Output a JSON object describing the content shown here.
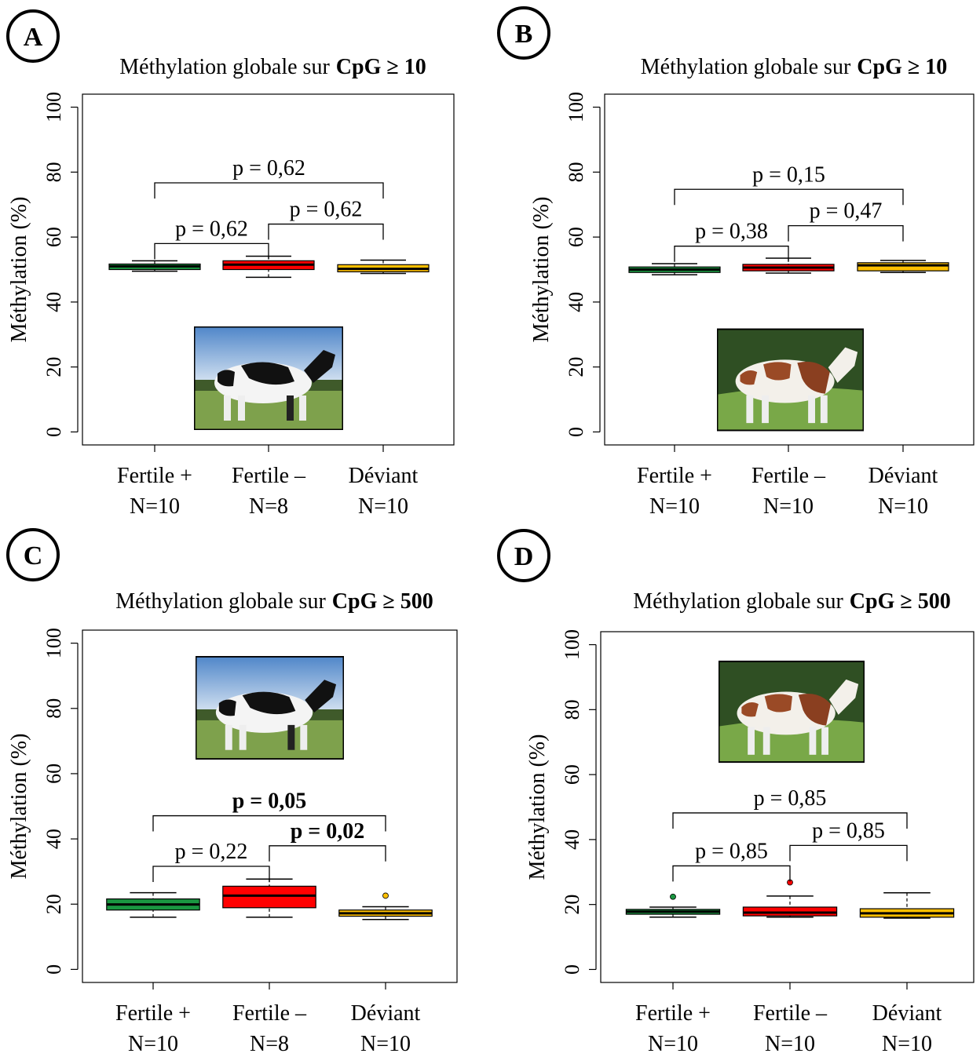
{
  "chart_data": [
    {
      "type": "box",
      "panel": "A",
      "title": "Méthylation globale sur",
      "title_bold": "CpG ≥ 10",
      "ylabel": "Méthylation (%)",
      "ylim": [
        -4,
        104
      ],
      "yticks": [
        0,
        20,
        40,
        60,
        80,
        100
      ],
      "categories": [
        "Fertile +",
        "Fertile –",
        "Déviant"
      ],
      "counts": [
        "N=10",
        "N=8",
        "N=10"
      ],
      "boxes": [
        {
          "color": "#1a9641",
          "whislo": 49.5,
          "q1": 50.0,
          "med": 51.0,
          "q3": 51.7,
          "whishi": 52.7,
          "outliers": []
        },
        {
          "color": "#ff0000",
          "whislo": 47.6,
          "q1": 50.0,
          "med": 51.5,
          "q3": 52.7,
          "whishi": 54.1,
          "outliers": []
        },
        {
          "color": "#ffc000",
          "whislo": 48.8,
          "q1": 49.3,
          "med": 50.2,
          "q3": 51.5,
          "whishi": 52.9,
          "outliers": []
        }
      ],
      "brackets": [
        {
          "from": 0,
          "to": 2,
          "y": 76.7,
          "label": "p = 0,62",
          "bold": false
        },
        {
          "from": 0,
          "to": 1,
          "y": 58.0,
          "label": "p = 0,62",
          "bold": false
        },
        {
          "from": 1,
          "to": 2,
          "y": 64.0,
          "label": "p = 0,62",
          "bold": false
        }
      ]
    },
    {
      "type": "box",
      "panel": "B",
      "title": "Méthylation globale sur",
      "title_bold": "CpG ≥ 10",
      "ylabel": "Méthylation (%)",
      "ylim": [
        -4,
        104
      ],
      "yticks": [
        0,
        20,
        40,
        60,
        80,
        100
      ],
      "categories": [
        "Fertile +",
        "Fertile –",
        "Déviant"
      ],
      "counts": [
        "N=10",
        "N=10",
        "N=10"
      ],
      "boxes": [
        {
          "color": "#1a9641",
          "whislo": 48.4,
          "q1": 49.1,
          "med": 50.0,
          "q3": 50.8,
          "whishi": 51.8,
          "outliers": []
        },
        {
          "color": "#ff0000",
          "whislo": 48.9,
          "q1": 49.6,
          "med": 50.6,
          "q3": 51.6,
          "whishi": 53.5,
          "outliers": []
        },
        {
          "color": "#ffc000",
          "whislo": 49.1,
          "q1": 49.6,
          "med": 51.3,
          "q3": 52.1,
          "whishi": 52.8,
          "outliers": []
        }
      ],
      "brackets": [
        {
          "from": 0,
          "to": 2,
          "y": 74.7,
          "label": "p = 0,15",
          "bold": false
        },
        {
          "from": 0,
          "to": 1,
          "y": 57.2,
          "label": "p = 0,38",
          "bold": false
        },
        {
          "from": 1,
          "to": 2,
          "y": 63.5,
          "label": "p = 0,47",
          "bold": false
        }
      ]
    },
    {
      "type": "box",
      "panel": "C",
      "title": "Méthylation globale sur",
      "title_bold": "CpG ≥ 500",
      "ylabel": "Méthylation (%)",
      "ylim": [
        -4,
        104
      ],
      "yticks": [
        0,
        20,
        40,
        60,
        80,
        100
      ],
      "categories": [
        "Fertile +",
        "Fertile –",
        "Déviant"
      ],
      "counts": [
        "N=10",
        "N=8",
        "N=10"
      ],
      "boxes": [
        {
          "color": "#1a9641",
          "whislo": 16.0,
          "q1": 18.2,
          "med": 19.9,
          "q3": 21.6,
          "whishi": 23.5,
          "outliers": []
        },
        {
          "color": "#ff0000",
          "whislo": 16.0,
          "q1": 18.9,
          "med": 22.6,
          "q3": 25.5,
          "whishi": 27.7,
          "outliers": []
        },
        {
          "color": "#ffc000",
          "whislo": 15.3,
          "q1": 16.3,
          "med": 17.2,
          "q3": 18.2,
          "whishi": 19.2,
          "outliers": [
            22.6
          ]
        }
      ],
      "brackets": [
        {
          "from": 0,
          "to": 2,
          "y": 47.1,
          "label": "p = 0,05",
          "bold": true
        },
        {
          "from": 0,
          "to": 1,
          "y": 31.6,
          "label": "p = 0,22",
          "bold": false
        },
        {
          "from": 1,
          "to": 2,
          "y": 37.9,
          "label": "p = 0,02",
          "bold": true
        }
      ]
    },
    {
      "type": "box",
      "panel": "D",
      "title": "Méthylation globale sur",
      "title_bold": "CpG ≥ 500",
      "ylabel": "Méthylation (%)",
      "ylim": [
        -4,
        104
      ],
      "yticks": [
        0,
        20,
        40,
        60,
        80,
        100
      ],
      "categories": [
        "Fertile +",
        "Fertile –",
        "Déviant"
      ],
      "counts": [
        "N=10",
        "N=10",
        "N=10"
      ],
      "boxes": [
        {
          "color": "#1a9641",
          "whislo": 16.1,
          "q1": 17.0,
          "med": 17.8,
          "q3": 18.5,
          "whishi": 19.2,
          "outliers": [
            22.4
          ]
        },
        {
          "color": "#ff0000",
          "whislo": 16.1,
          "q1": 16.5,
          "med": 17.5,
          "q3": 19.2,
          "whishi": 22.6,
          "outliers": [
            26.8
          ]
        },
        {
          "color": "#ffc000",
          "whislo": 15.8,
          "q1": 16.1,
          "med": 17.3,
          "q3": 18.7,
          "whishi": 23.6,
          "outliers": []
        }
      ],
      "brackets": [
        {
          "from": 0,
          "to": 2,
          "y": 48.2,
          "label": "p = 0,85",
          "bold": false
        },
        {
          "from": 0,
          "to": 1,
          "y": 31.9,
          "label": "p = 0,85",
          "bold": false
        },
        {
          "from": 1,
          "to": 2,
          "y": 38.2,
          "label": "p = 0,85",
          "bold": false
        }
      ]
    }
  ]
}
